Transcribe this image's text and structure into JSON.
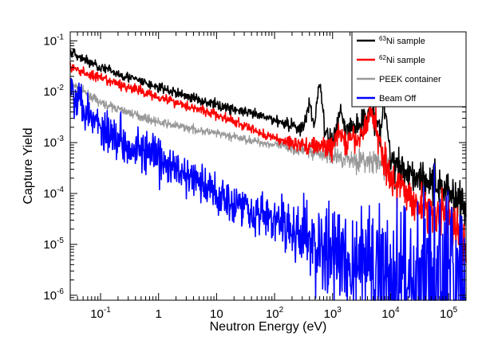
{
  "chart_data": {
    "type": "line",
    "xlabel": "Neutron Energy (eV)",
    "ylabel": "Capture Yield",
    "x_scale": "log",
    "y_scale": "log",
    "xlim": [
      0.03,
      200000
    ],
    "ylim": [
      8e-07,
      0.15
    ],
    "grid": false,
    "legend_position": "top-right",
    "x_ticks": [
      {
        "value": 0.1,
        "mantissa": "10",
        "exp": "-1"
      },
      {
        "value": 1,
        "mantissa": "1",
        "exp": ""
      },
      {
        "value": 10,
        "mantissa": "10",
        "exp": ""
      },
      {
        "value": 100,
        "mantissa": "10",
        "exp": "2"
      },
      {
        "value": 1000,
        "mantissa": "10",
        "exp": "3"
      },
      {
        "value": 10000,
        "mantissa": "10",
        "exp": "4"
      },
      {
        "value": 100000,
        "mantissa": "10",
        "exp": "5"
      }
    ],
    "y_ticks": [
      {
        "value": 0.1,
        "mantissa": "10",
        "exp": "-1"
      },
      {
        "value": 0.01,
        "mantissa": "10",
        "exp": "-2"
      },
      {
        "value": 0.001,
        "mantissa": "10",
        "exp": "-3"
      },
      {
        "value": 0.0001,
        "mantissa": "10",
        "exp": "-4"
      },
      {
        "value": 1e-05,
        "mantissa": "10",
        "exp": "-5"
      },
      {
        "value": 1e-06,
        "mantissa": "10",
        "exp": "-6"
      }
    ],
    "series": [
      {
        "name_sup": "63",
        "name": "Ni sample",
        "color": "#000000",
        "noise": 0.05,
        "points": [
          [
            0.03,
            0.06
          ],
          [
            0.1,
            0.03
          ],
          [
            1,
            0.012
          ],
          [
            10,
            0.0055
          ],
          [
            100,
            0.0028
          ],
          [
            300,
            0.0019
          ],
          [
            1000,
            0.0011
          ],
          [
            3000,
            0.0025
          ],
          [
            5000,
            0.0035
          ],
          [
            8000,
            0.0006
          ],
          [
            10000,
            0.0004
          ],
          [
            30000,
            0.00022
          ],
          [
            100000,
            0.00012
          ],
          [
            200000,
            5e-05
          ]
        ],
        "peaks": [
          [
            200,
            0.0018
          ],
          [
            600,
            0.015
          ],
          [
            1350,
            0.0045
          ],
          [
            4500,
            0.0051
          ],
          [
            8000,
            0.0045
          ],
          [
            400,
            0.0055
          ]
        ]
      },
      {
        "name_sup": "62",
        "name": "Ni sample",
        "color": "#ff0000",
        "noise": 0.05,
        "points": [
          [
            0.03,
            0.03
          ],
          [
            0.1,
            0.018
          ],
          [
            1,
            0.008
          ],
          [
            10,
            0.0035
          ],
          [
            100,
            0.0012
          ],
          [
            300,
            0.0009
          ],
          [
            1000,
            0.0008
          ],
          [
            3000,
            0.0012
          ],
          [
            4800,
            0.0045
          ],
          [
            7000,
            0.0007
          ],
          [
            10000,
            0.0002
          ],
          [
            30000,
            6e-05
          ],
          [
            100000,
            3.5e-05
          ],
          [
            200000,
            1e-05
          ]
        ],
        "peaks": [
          [
            1300,
            0.0016
          ]
        ]
      },
      {
        "name": "PEEK container",
        "color": "#999999",
        "noise": 0.04,
        "points": [
          [
            0.03,
            0.015
          ],
          [
            0.1,
            0.006
          ],
          [
            1,
            0.0025
          ],
          [
            10,
            0.0015
          ],
          [
            100,
            0.0009
          ],
          [
            1000,
            0.00055
          ],
          [
            10000,
            0.00035
          ]
        ],
        "peaks": []
      },
      {
        "name": "Beam Off",
        "color": "#0000ff",
        "noise": 0.22,
        "points": [
          [
            0.03,
            0.012
          ],
          [
            0.05,
            0.006
          ],
          [
            0.1,
            0.002
          ],
          [
            1,
            0.00045
          ],
          [
            10,
            0.0001
          ],
          [
            100,
            3e-05
          ],
          [
            1000,
            6e-06
          ],
          [
            10000,
            2.5e-06
          ],
          [
            100000,
            1.5e-06
          ],
          [
            200000,
            1e-06
          ]
        ],
        "peaks": []
      }
    ]
  }
}
